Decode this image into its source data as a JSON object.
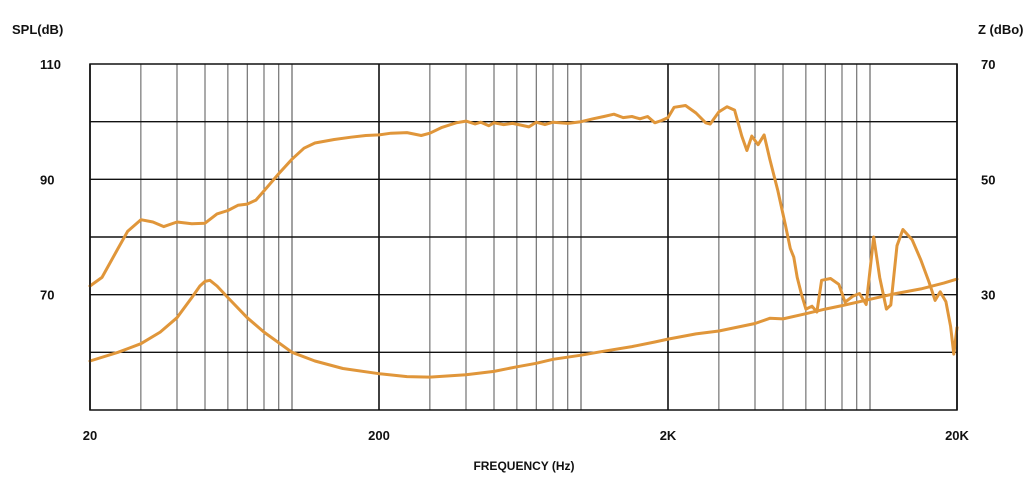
{
  "chart_data": {
    "type": "line",
    "x_scale": "log",
    "xlim": [
      20,
      20000
    ],
    "xticks": [
      {
        "value": 20,
        "label": "20"
      },
      {
        "value": 200,
        "label": "200"
      },
      {
        "value": 2000,
        "label": "2K"
      },
      {
        "value": 20000,
        "label": "20K"
      }
    ],
    "xlabel": "FREQUENCY (Hz)",
    "y_left": {
      "label": "SPL(dB)",
      "range": [
        50,
        110
      ],
      "ticks": [
        {
          "value": 110,
          "label": "110"
        },
        {
          "value": 90,
          "label": "90"
        },
        {
          "value": 70,
          "label": "70"
        }
      ]
    },
    "y_right": {
      "label": "Z (dBo)",
      "range": [
        10,
        70
      ],
      "ticks": [
        {
          "value": 70,
          "label": "70"
        },
        {
          "value": 50,
          "label": "50"
        },
        {
          "value": 30,
          "label": "30"
        }
      ]
    },
    "grid": true,
    "line_color": "#e0963a",
    "series": [
      {
        "axis": "left",
        "points": [
          [
            20,
            71.5
          ],
          [
            22,
            73
          ],
          [
            25,
            78
          ],
          [
            27,
            81
          ],
          [
            30,
            83
          ],
          [
            33,
            82.6
          ],
          [
            36,
            81.8
          ],
          [
            40,
            82.6
          ],
          [
            45,
            82.3
          ],
          [
            50,
            82.4
          ],
          [
            55,
            84
          ],
          [
            60,
            84.6
          ],
          [
            65,
            85.5
          ],
          [
            70,
            85.7
          ],
          [
            75,
            86.4
          ],
          [
            80,
            88
          ],
          [
            90,
            91
          ],
          [
            100,
            93.5
          ],
          [
            110,
            95.4
          ],
          [
            120,
            96.3
          ],
          [
            140,
            96.9
          ],
          [
            160,
            97.3
          ],
          [
            180,
            97.6
          ],
          [
            200,
            97.7
          ],
          [
            220,
            98
          ],
          [
            250,
            98.1
          ],
          [
            280,
            97.6
          ],
          [
            300,
            98
          ],
          [
            330,
            99
          ],
          [
            370,
            99.8
          ],
          [
            400,
            100.1
          ],
          [
            430,
            99.6
          ],
          [
            450,
            99.9
          ],
          [
            480,
            99.3
          ],
          [
            500,
            99.8
          ],
          [
            540,
            99.5
          ],
          [
            580,
            99.7
          ],
          [
            620,
            99.4
          ],
          [
            660,
            99.1
          ],
          [
            700,
            99.9
          ],
          [
            750,
            99.5
          ],
          [
            800,
            99.9
          ],
          [
            900,
            99.7
          ],
          [
            1000,
            100
          ],
          [
            1100,
            100.5
          ],
          [
            1200,
            100.9
          ],
          [
            1300,
            101.3
          ],
          [
            1400,
            100.7
          ],
          [
            1500,
            100.9
          ],
          [
            1600,
            100.5
          ],
          [
            1700,
            100.9
          ],
          [
            1800,
            99.8
          ],
          [
            1900,
            100.2
          ],
          [
            2000,
            100.7
          ],
          [
            2100,
            102.5
          ],
          [
            2300,
            102.8
          ],
          [
            2500,
            101.5
          ],
          [
            2700,
            99.8
          ],
          [
            2800,
            99.6
          ],
          [
            3000,
            101.7
          ],
          [
            3200,
            102.6
          ],
          [
            3400,
            102
          ],
          [
            3600,
            97.5
          ],
          [
            3750,
            95
          ],
          [
            3900,
            97.5
          ],
          [
            4100,
            96
          ],
          [
            4300,
            97.7
          ],
          [
            4500,
            93.5
          ],
          [
            4800,
            88
          ],
          [
            5100,
            82
          ],
          [
            5300,
            78
          ],
          [
            5450,
            76.5
          ],
          [
            5600,
            73
          ],
          [
            5800,
            70
          ],
          [
            6000,
            67.5
          ],
          [
            6300,
            68
          ],
          [
            6550,
            67
          ],
          [
            6800,
            72.5
          ],
          [
            7300,
            72.8
          ],
          [
            7800,
            71.8
          ],
          [
            8200,
            68.7
          ],
          [
            8700,
            69.7
          ],
          [
            9200,
            70.2
          ],
          [
            9700,
            68.3
          ],
          [
            10300,
            80
          ],
          [
            10800,
            73
          ],
          [
            11400,
            67.5
          ],
          [
            11800,
            68.2
          ],
          [
            12400,
            78.5
          ],
          [
            13000,
            81.3
          ],
          [
            14000,
            79.5
          ],
          [
            15000,
            76
          ],
          [
            16000,
            72.2
          ],
          [
            16800,
            69
          ],
          [
            17500,
            70.5
          ],
          [
            18300,
            68.8
          ],
          [
            19000,
            64.5
          ],
          [
            19500,
            59.7
          ],
          [
            20000,
            64.3
          ]
        ]
      },
      {
        "axis": "right",
        "points": [
          [
            20,
            18.5
          ],
          [
            25,
            20
          ],
          [
            30,
            21.5
          ],
          [
            35,
            23.5
          ],
          [
            40,
            26
          ],
          [
            45,
            29.5
          ],
          [
            48,
            31.5
          ],
          [
            50,
            32.3
          ],
          [
            52,
            32.5
          ],
          [
            55,
            31.5
          ],
          [
            60,
            29.5
          ],
          [
            70,
            26
          ],
          [
            80,
            23.5
          ],
          [
            100,
            20
          ],
          [
            120,
            18.5
          ],
          [
            150,
            17.2
          ],
          [
            200,
            16.3
          ],
          [
            250,
            15.8
          ],
          [
            300,
            15.7
          ],
          [
            400,
            16.1
          ],
          [
            500,
            16.7
          ],
          [
            600,
            17.5
          ],
          [
            700,
            18.1
          ],
          [
            800,
            18.8
          ],
          [
            1000,
            19.5
          ],
          [
            1200,
            20.2
          ],
          [
            1500,
            21
          ],
          [
            1800,
            21.8
          ],
          [
            2000,
            22.3
          ],
          [
            2500,
            23.2
          ],
          [
            3000,
            23.7
          ],
          [
            4000,
            25
          ],
          [
            4500,
            25.9
          ],
          [
            5000,
            25.8
          ],
          [
            6000,
            26.7
          ],
          [
            7000,
            27.5
          ],
          [
            8000,
            28.1
          ],
          [
            10000,
            29.2
          ],
          [
            12000,
            30.1
          ],
          [
            15000,
            31
          ],
          [
            18000,
            32
          ],
          [
            20000,
            32.7
          ]
        ]
      }
    ]
  }
}
